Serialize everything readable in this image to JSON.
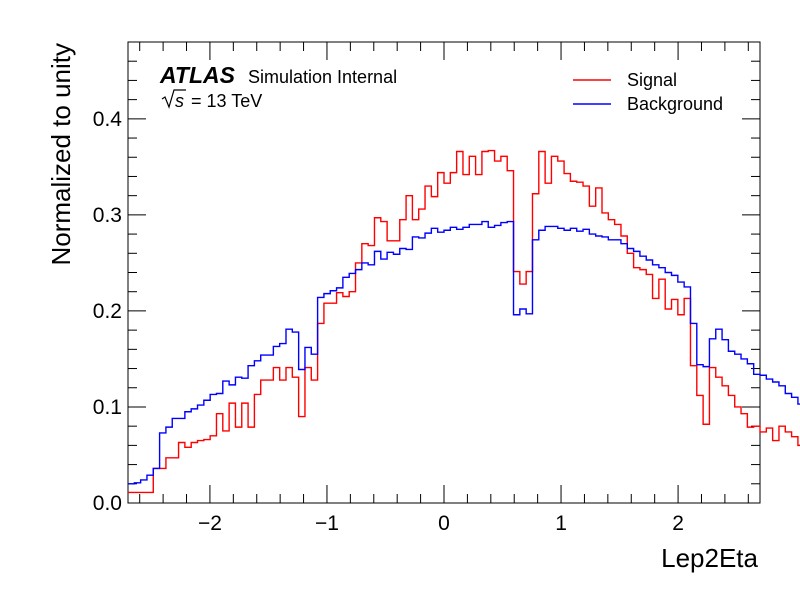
{
  "chart_data": {
    "type": "histogram",
    "xlabel": "Lep2Eta",
    "ylabel": "Normalized to unity",
    "xlim": [
      -2.7,
      2.7
    ],
    "ylim": [
      0,
      0.48
    ],
    "x_ticks": [
      -2,
      -1,
      0,
      1,
      2
    ],
    "x_tick_labels": [
      "−2",
      "−1",
      "0",
      "1",
      "2"
    ],
    "y_ticks": [
      0.0,
      0.1,
      0.2,
      0.3,
      0.4
    ],
    "y_tick_labels": [
      "0.0",
      "0.1",
      "0.2",
      "0.3",
      "0.4"
    ],
    "bin_edges_start": -2.7,
    "bin_width": 0.054,
    "grid": false,
    "legend_position": "top-right",
    "experiment_label": {
      "bold": "ATLAS",
      "status": "Simulation Internal",
      "energy_prefix": "s",
      "energy_suffix": " = 13 TeV"
    },
    "series": [
      {
        "name": "Signal",
        "color": "#ff0000",
        "values": [
          0.011,
          0.011,
          0.011,
          0.011,
          0.036,
          0.036,
          0.047,
          0.047,
          0.063,
          0.058,
          0.063,
          0.065,
          0.066,
          0.07,
          0.093,
          0.075,
          0.104,
          0.079,
          0.104,
          0.079,
          0.113,
          0.128,
          0.128,
          0.141,
          0.128,
          0.141,
          0.131,
          0.09,
          0.141,
          0.128,
          0.187,
          0.208,
          0.208,
          0.219,
          0.215,
          0.22,
          0.25,
          0.27,
          0.268,
          0.297,
          0.293,
          0.273,
          0.273,
          0.295,
          0.32,
          0.295,
          0.306,
          0.33,
          0.319,
          0.344,
          0.333,
          0.344,
          0.366,
          0.342,
          0.361,
          0.342,
          0.366,
          0.367,
          0.356,
          0.361,
          0.346,
          0.241,
          0.228,
          0.241,
          0.322,
          0.366,
          0.333,
          0.361,
          0.356,
          0.343,
          0.335,
          0.334,
          0.33,
          0.309,
          0.328,
          0.302,
          0.295,
          0.29,
          0.278,
          0.26,
          0.245,
          0.243,
          0.238,
          0.213,
          0.233,
          0.202,
          0.212,
          0.196,
          0.213,
          0.143,
          0.112,
          0.082,
          0.141,
          0.131,
          0.122,
          0.112,
          0.1,
          0.093,
          0.079,
          0.08,
          0.074,
          0.078,
          0.065,
          0.08,
          0.074,
          0.069,
          0.06,
          0.058,
          0.052,
          0.047,
          0.044,
          0.038,
          0.036,
          0.024,
          0.012,
          0.014,
          0.011,
          0.011,
          0.012,
          0.011
        ],
        "line_width": 1.4
      },
      {
        "name": "Background",
        "color": "#0000ff",
        "values": [
          0.02,
          0.021,
          0.024,
          0.029,
          0.036,
          0.073,
          0.079,
          0.088,
          0.088,
          0.095,
          0.098,
          0.102,
          0.107,
          0.113,
          0.114,
          0.127,
          0.123,
          0.131,
          0.13,
          0.143,
          0.148,
          0.154,
          0.154,
          0.163,
          0.166,
          0.181,
          0.178,
          0.139,
          0.162,
          0.155,
          0.214,
          0.218,
          0.221,
          0.224,
          0.235,
          0.239,
          0.243,
          0.25,
          0.248,
          0.262,
          0.254,
          0.261,
          0.259,
          0.265,
          0.264,
          0.277,
          0.276,
          0.281,
          0.286,
          0.282,
          0.284,
          0.287,
          0.285,
          0.287,
          0.29,
          0.29,
          0.293,
          0.287,
          0.289,
          0.292,
          0.293,
          0.196,
          0.202,
          0.197,
          0.274,
          0.284,
          0.288,
          0.288,
          0.286,
          0.284,
          0.286,
          0.283,
          0.285,
          0.28,
          0.278,
          0.277,
          0.274,
          0.274,
          0.27,
          0.265,
          0.262,
          0.257,
          0.253,
          0.248,
          0.245,
          0.24,
          0.237,
          0.23,
          0.225,
          0.187,
          0.144,
          0.142,
          0.171,
          0.181,
          0.17,
          0.158,
          0.155,
          0.15,
          0.145,
          0.134,
          0.133,
          0.129,
          0.126,
          0.122,
          0.114,
          0.11,
          0.103,
          0.098,
          0.094,
          0.087,
          0.077,
          0.067,
          0.063,
          0.048,
          0.035,
          0.025,
          0.021,
          0.021,
          0.02,
          0.018
        ],
        "line_width": 1.4
      }
    ]
  }
}
